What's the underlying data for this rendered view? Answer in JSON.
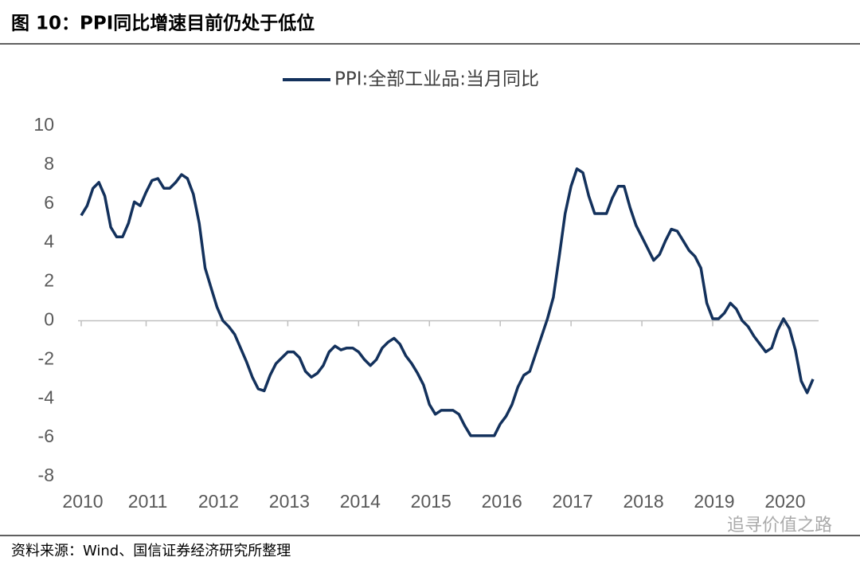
{
  "chart_data": {
    "type": "line",
    "title": "图 10：PPI同比增速目前仍处于低位",
    "source": "资料来源：Wind、国信证券经济研究所整理",
    "watermark": "追寻价值之路",
    "categories": [
      "2010",
      null,
      null,
      null,
      null,
      null,
      null,
      null,
      null,
      null,
      null,
      "2011",
      null,
      null,
      null,
      null,
      null,
      null,
      null,
      null,
      null,
      null,
      null,
      "2012",
      null,
      null,
      null,
      null,
      null,
      null,
      null,
      null,
      null,
      null,
      null,
      "2013",
      null,
      null,
      null,
      null,
      null,
      null,
      null,
      null,
      null,
      null,
      null,
      "2014",
      null,
      null,
      null,
      null,
      null,
      null,
      null,
      null,
      null,
      null,
      null,
      "2015",
      null,
      null,
      null,
      null,
      null,
      null,
      null,
      null,
      null,
      null,
      null,
      "2016",
      null,
      null,
      null,
      null,
      null,
      null,
      null,
      null,
      null,
      null,
      null,
      "2017",
      null,
      null,
      null,
      null,
      null,
      null,
      null,
      null,
      null,
      null,
      null,
      "2018",
      null,
      null,
      null,
      null,
      null,
      null,
      null,
      null,
      null,
      null,
      null,
      "2019",
      null,
      null,
      null,
      null,
      null,
      null,
      null,
      null,
      null,
      null,
      null,
      "2020",
      null,
      null,
      null,
      null,
      null
    ],
    "series": [
      {
        "name": "PPI:全部工业品:当月同比",
        "color": "#13315c",
        "values": [
          5.4,
          5.9,
          6.8,
          7.1,
          6.4,
          4.8,
          4.3,
          4.3,
          5.0,
          6.1,
          5.9,
          6.6,
          7.2,
          7.3,
          6.8,
          6.8,
          7.1,
          7.5,
          7.3,
          6.5,
          5.0,
          2.7,
          1.7,
          0.7,
          0.0,
          -0.3,
          -0.7,
          -1.4,
          -2.1,
          -2.9,
          -3.5,
          -3.6,
          -2.8,
          -2.2,
          -1.9,
          -1.6,
          -1.6,
          -1.9,
          -2.6,
          -2.9,
          -2.7,
          -2.3,
          -1.6,
          -1.3,
          -1.5,
          -1.4,
          -1.4,
          -1.6,
          -2.0,
          -2.3,
          -2.0,
          -1.4,
          -1.1,
          -0.9,
          -1.2,
          -1.8,
          -2.2,
          -2.7,
          -3.3,
          -4.3,
          -4.8,
          -4.6,
          -4.6,
          -4.6,
          -4.8,
          -5.4,
          -5.9,
          -5.9,
          -5.9,
          -5.9,
          -5.9,
          -5.3,
          -4.9,
          -4.3,
          -3.4,
          -2.8,
          -2.6,
          -1.7,
          -0.8,
          0.1,
          1.2,
          3.3,
          5.5,
          6.9,
          7.8,
          7.6,
          6.4,
          5.5,
          5.5,
          5.5,
          6.3,
          6.9,
          6.9,
          5.8,
          4.9,
          4.3,
          3.7,
          3.1,
          3.4,
          4.1,
          4.7,
          4.6,
          4.1,
          3.6,
          3.3,
          2.7,
          0.9,
          0.1,
          0.1,
          0.4,
          0.9,
          0.6,
          0.0,
          -0.3,
          -0.8,
          -1.2,
          -1.6,
          -1.4,
          -0.5,
          0.1,
          -0.4,
          -1.5,
          -3.1,
          -3.7,
          -3.0
        ]
      }
    ],
    "ylim": [
      -8,
      10
    ],
    "yticks": [
      -8,
      -6,
      -4,
      -2,
      0,
      2,
      4,
      6,
      8,
      10
    ],
    "grid": false,
    "legend": "top"
  }
}
